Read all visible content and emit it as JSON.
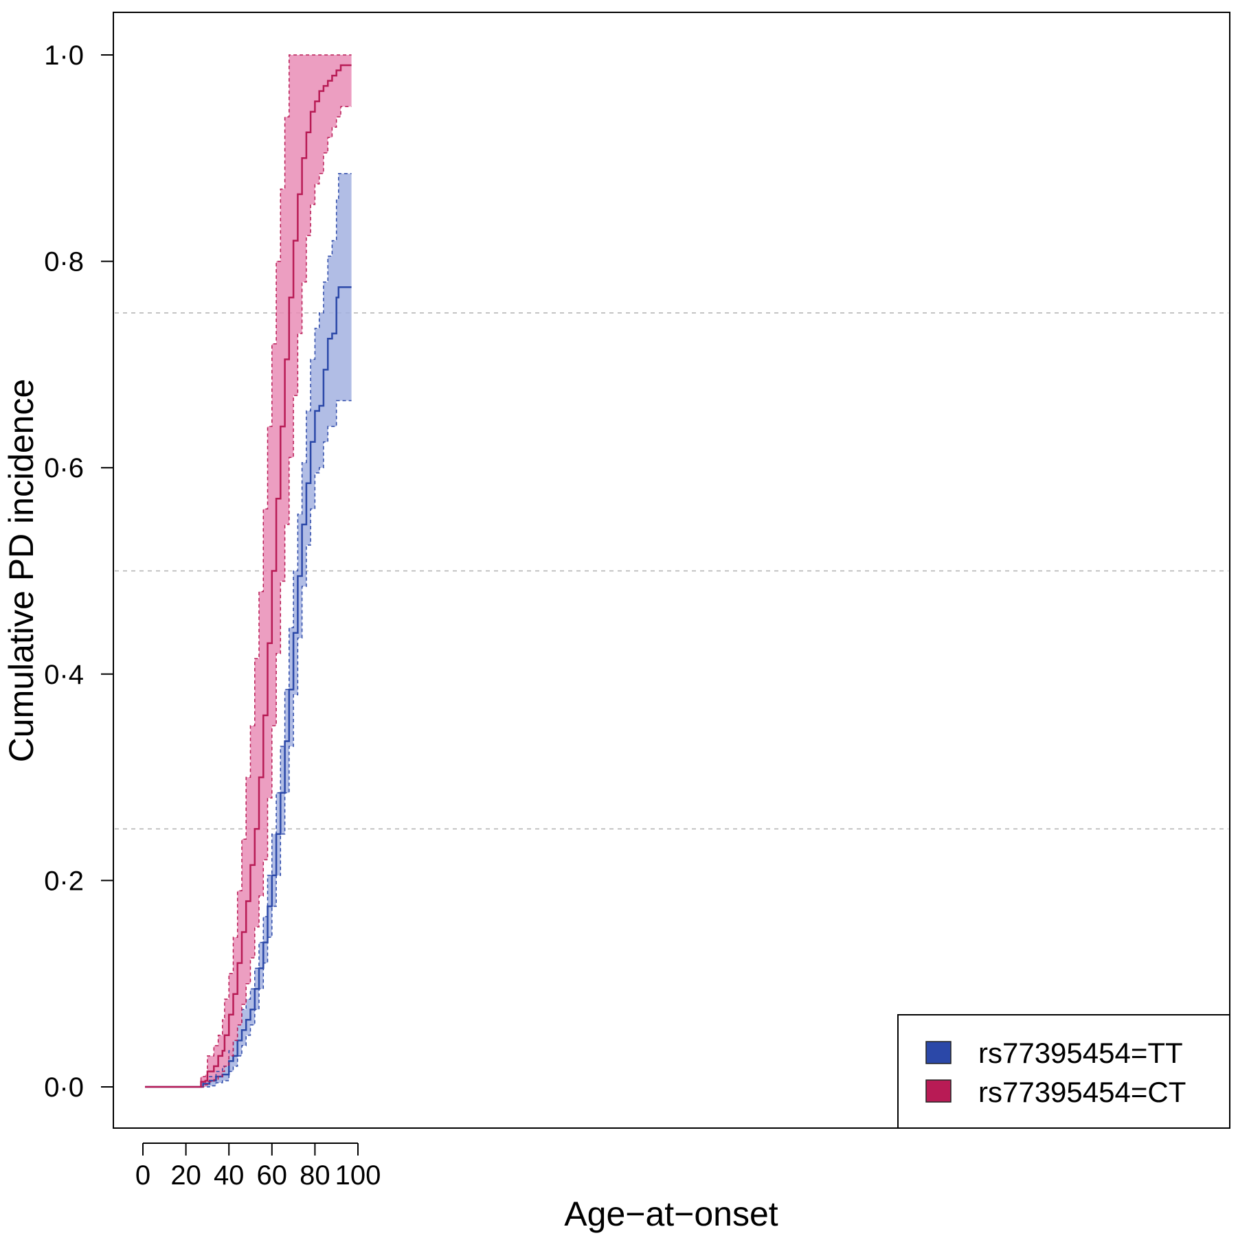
{
  "chart_data": {
    "type": "line",
    "subtype": "step cumulative incidence with confidence bands",
    "title": "",
    "xlabel": "Age−at−onset",
    "ylabel": "Cumulative PD incidence",
    "xlim": [
      0,
      100
    ],
    "ylim": [
      0,
      1
    ],
    "x_ticks": [
      0,
      20,
      40,
      60,
      80,
      100
    ],
    "x_tick_labels": [
      "0",
      "20",
      "40",
      "60",
      "80",
      "100"
    ],
    "y_ticks": [
      0,
      0.2,
      0.4,
      0.6,
      0.8,
      1.0
    ],
    "y_tick_labels": [
      "0·0",
      "0·2",
      "0·4",
      "0·6",
      "0·8",
      "1·0"
    ],
    "reference_lines_y": [
      0.25,
      0.5,
      0.75
    ],
    "legend_position": "bottom-right",
    "series": [
      {
        "name": "rs77395454=TT",
        "color": "#2B48A8",
        "band_color": "#A3B2E0",
        "x": [
          1,
          25,
          28,
          31,
          34,
          37,
          40,
          42,
          44,
          46,
          48,
          50,
          52,
          54,
          56,
          58,
          60,
          62,
          64,
          66,
          68,
          70,
          72,
          74,
          76,
          78,
          80,
          82,
          84,
          86,
          88,
          90,
          91,
          97
        ],
        "y": [
          0,
          0,
          0.003,
          0.006,
          0.01,
          0.012,
          0.025,
          0.03,
          0.045,
          0.055,
          0.065,
          0.075,
          0.095,
          0.115,
          0.14,
          0.175,
          0.205,
          0.245,
          0.285,
          0.335,
          0.385,
          0.44,
          0.495,
          0.545,
          0.585,
          0.625,
          0.655,
          0.66,
          0.695,
          0.725,
          0.73,
          0.765,
          0.775,
          0.775
        ],
        "lower": [
          1,
          25,
          28,
          31,
          34,
          37,
          40,
          42,
          44,
          46,
          48,
          50,
          52,
          54,
          56,
          58,
          60,
          62,
          64,
          66,
          68,
          70,
          72,
          74,
          76,
          78,
          80,
          82,
          84,
          86,
          88,
          90,
          91,
          97
        ],
        "lower_y": [
          0,
          0,
          0.0,
          0.001,
          0.004,
          0.006,
          0.015,
          0.02,
          0.03,
          0.04,
          0.05,
          0.06,
          0.075,
          0.095,
          0.12,
          0.145,
          0.175,
          0.205,
          0.245,
          0.285,
          0.33,
          0.38,
          0.435,
          0.485,
          0.525,
          0.56,
          0.595,
          0.6,
          0.625,
          0.64,
          0.64,
          0.665,
          0.665,
          0.665
        ],
        "upper_y": [
          0,
          0,
          0.005,
          0.01,
          0.015,
          0.02,
          0.035,
          0.045,
          0.06,
          0.075,
          0.085,
          0.095,
          0.115,
          0.14,
          0.165,
          0.205,
          0.245,
          0.285,
          0.33,
          0.385,
          0.445,
          0.5,
          0.555,
          0.605,
          0.655,
          0.705,
          0.735,
          0.75,
          0.78,
          0.805,
          0.82,
          0.86,
          0.885,
          0.885
        ]
      },
      {
        "name": "rs77395454=CT",
        "color": "#B81B55",
        "band_color": "#E98DB6",
        "x": [
          1,
          25,
          27,
          29,
          30,
          33,
          35,
          37,
          38,
          40,
          42,
          44,
          46,
          48,
          50,
          52,
          54,
          56,
          58,
          60,
          62,
          64,
          66,
          68,
          70,
          72,
          74,
          76,
          78,
          80,
          82,
          84,
          86,
          88,
          90,
          92,
          97
        ],
        "y": [
          0,
          0,
          0.005,
          0.006,
          0.015,
          0.02,
          0.03,
          0.035,
          0.05,
          0.07,
          0.09,
          0.12,
          0.15,
          0.18,
          0.215,
          0.25,
          0.3,
          0.36,
          0.43,
          0.5,
          0.57,
          0.64,
          0.705,
          0.765,
          0.82,
          0.865,
          0.9,
          0.925,
          0.945,
          0.955,
          0.965,
          0.97,
          0.975,
          0.98,
          0.985,
          0.99,
          0.99
        ],
        "lower_y": [
          0,
          0,
          0.0,
          0.002,
          0.005,
          0.007,
          0.01,
          0.015,
          0.02,
          0.03,
          0.045,
          0.06,
          0.08,
          0.1,
          0.125,
          0.155,
          0.185,
          0.22,
          0.28,
          0.35,
          0.42,
          0.49,
          0.545,
          0.61,
          0.67,
          0.73,
          0.78,
          0.825,
          0.855,
          0.875,
          0.885,
          0.905,
          0.92,
          0.93,
          0.94,
          0.95,
          0.95
        ],
        "upper_y": [
          0,
          0,
          0.01,
          0.012,
          0.03,
          0.04,
          0.05,
          0.065,
          0.085,
          0.11,
          0.145,
          0.19,
          0.24,
          0.3,
          0.35,
          0.415,
          0.48,
          0.56,
          0.64,
          0.72,
          0.8,
          0.87,
          0.94,
          1.0,
          1.0,
          1.0,
          1.0,
          1.0,
          1.0,
          1.0,
          1.0,
          1.0,
          1.0,
          1.0,
          1.0,
          1.0,
          1.0
        ]
      }
    ]
  }
}
